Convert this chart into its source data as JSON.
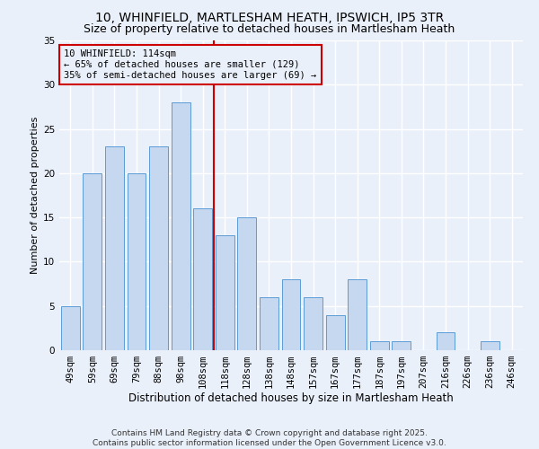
{
  "title": "10, WHINFIELD, MARTLESHAM HEATH, IPSWICH, IP5 3TR",
  "subtitle": "Size of property relative to detached houses in Martlesham Heath",
  "xlabel": "Distribution of detached houses by size in Martlesham Heath",
  "ylabel": "Number of detached properties",
  "categories": [
    "49sqm",
    "59sqm",
    "69sqm",
    "79sqm",
    "88sqm",
    "98sqm",
    "108sqm",
    "118sqm",
    "128sqm",
    "138sqm",
    "148sqm",
    "157sqm",
    "167sqm",
    "177sqm",
    "187sqm",
    "197sqm",
    "207sqm",
    "216sqm",
    "226sqm",
    "236sqm",
    "246sqm"
  ],
  "values": [
    5,
    20,
    23,
    20,
    23,
    28,
    16,
    13,
    15,
    6,
    8,
    6,
    4,
    8,
    1,
    1,
    0,
    2,
    0,
    1,
    0
  ],
  "bar_color": "#c5d8f0",
  "bar_edge_color": "#5b9bd5",
  "vline_x": 6.5,
  "vline_color": "#cc0000",
  "annotation_text": "10 WHINFIELD: 114sqm\n← 65% of detached houses are smaller (129)\n35% of semi-detached houses are larger (69) →",
  "annotation_box_color": "#cc0000",
  "ylim": [
    0,
    35
  ],
  "yticks": [
    0,
    5,
    10,
    15,
    20,
    25,
    30,
    35
  ],
  "background_color": "#eaf0fa",
  "grid_color": "#ffffff",
  "footer_text": "Contains HM Land Registry data © Crown copyright and database right 2025.\nContains public sector information licensed under the Open Government Licence v3.0.",
  "title_fontsize": 10,
  "subtitle_fontsize": 9,
  "xlabel_fontsize": 8.5,
  "ylabel_fontsize": 8,
  "tick_fontsize": 7.5,
  "annotation_fontsize": 7.5,
  "footer_fontsize": 6.5
}
